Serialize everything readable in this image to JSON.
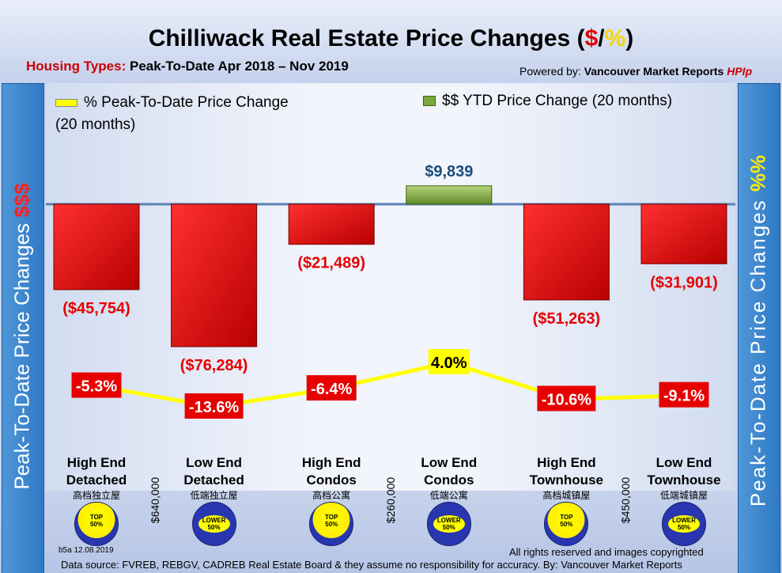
{
  "title": {
    "prefix": "Chilliwack Real Estate Price Changes (",
    "dollar": "$",
    "slash": "/",
    "pct": "%",
    "suffix": ")"
  },
  "subtitle": {
    "label": "Housing Types:",
    "range": "Peak-To-Date Apr 2018 – Nov 2019"
  },
  "powered_by": {
    "prefix": "Powered by: ",
    "brand": "Vancouver Market Reports ",
    "hpi": "HPIp"
  },
  "side_left": {
    "words": "Peak-To-Date Price Changes ",
    "accent": "$$$"
  },
  "side_right": {
    "words": "Peak-To-Date Price Changes ",
    "accent": "%%"
  },
  "colors": {
    "bar_negative": "#e60000",
    "bar_positive": "#7aa83a",
    "line": "#ffff00",
    "label_red": "#e60000",
    "axis_line": "#5a80b8"
  },
  "chart_data": {
    "type": "bar",
    "title": "Chilliwack Real Estate Price Changes ($/%)",
    "categories": [
      "High End Detached",
      "Low End Detached",
      "High End Condos",
      "Low End Condos",
      "High End Townhouse",
      "Low End Townhouse"
    ],
    "series": [
      {
        "name": "$$ YTD Price Change (20 months)",
        "type": "bar",
        "values": [
          -45754,
          -76284,
          -21489,
          9839,
          -51263,
          -31901
        ],
        "labels": [
          "($45,754)",
          "($76,284)",
          "($21,489)",
          "$9,839",
          "($51,263)",
          "($31,901)"
        ]
      },
      {
        "name": "% Peak-To-Date Price Change (20 months)",
        "type": "line",
        "values": [
          -5.3,
          -13.6,
          -6.4,
          4.0,
          -10.6,
          -9.1
        ],
        "labels": [
          "-5.3%",
          "-13.6%",
          "-6.4%",
          "4.0%",
          "-10.6%",
          "-9.1%"
        ]
      }
    ],
    "legend": [
      {
        "label": "% Peak-To-Date Price Change (20 months)",
        "position": "top-left"
      },
      {
        "label": "$$ YTD Price Change (20 months)",
        "position": "top-right"
      }
    ]
  },
  "categories_display": [
    {
      "line1": "High End",
      "line2": "Detached",
      "cn": "高档独立屋",
      "badge_l1": "TOP",
      "badge_l2": "50%",
      "badge": "top"
    },
    {
      "line1": "Low End",
      "line2": "Detached",
      "cn": "低端独立屋",
      "badge_l1": "LOWER",
      "badge_l2": "50%",
      "badge": "lower"
    },
    {
      "line1": "High End",
      "line2": "Condos",
      "cn": "高档公寓",
      "badge_l1": "TOP",
      "badge_l2": "50%",
      "badge": "top"
    },
    {
      "line1": "Low End",
      "line2": "Condos",
      "cn": "低端公寓",
      "badge_l1": "LOWER",
      "badge_l2": "50%",
      "badge": "lower"
    },
    {
      "line1": "High End",
      "line2": "Townhouse",
      "cn": "高档城镇屋",
      "badge_l1": "TOP",
      "badge_l2": "50%",
      "badge": "top"
    },
    {
      "line1": "Low End",
      "line2": "Townhouse",
      "cn": "低端城镇屋",
      "badge_l1": "LOWER",
      "badge_l2": "50%",
      "badge": "lower"
    }
  ],
  "price_thresholds": [
    "$640,000",
    "$260,000",
    "$450,000"
  ],
  "footer": {
    "code": "b5a 12.08.2019",
    "rights": "All rights reserved and  images copyrighted",
    "source": "Data source: FVREB, REBGV, CADREB Real Estate Board & they assume no responsibility for accuracy. By: Vancouver Market Reports"
  }
}
